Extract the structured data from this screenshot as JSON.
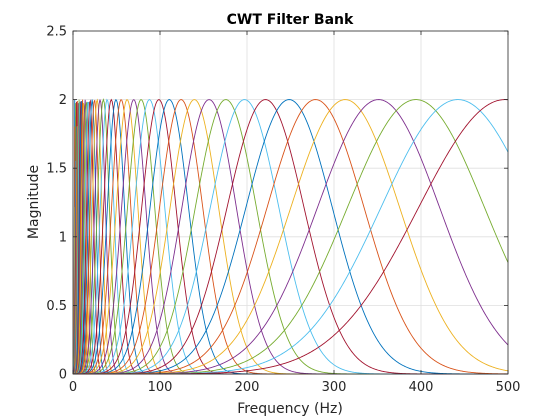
{
  "chart_data": {
    "type": "line",
    "title": "CWT Filter Bank",
    "xlabel": "Frequency (Hz)",
    "ylabel": "Magnitude",
    "xlim": [
      0,
      500
    ],
    "ylim": [
      0,
      2.5
    ],
    "x_ticks": [
      0,
      100,
      200,
      300,
      400,
      500
    ],
    "y_ticks": [
      0,
      0.5,
      1,
      1.5,
      2,
      2.5
    ],
    "x_tick_labels": [
      "0",
      "100",
      "200",
      "300",
      "400",
      "500"
    ],
    "y_tick_labels": [
      "0",
      "0.5",
      "1",
      "1.5",
      "2",
      "2.5"
    ],
    "grid": true,
    "legend": "none",
    "series_description": "Morlet wavelet filter bank: one bell-shaped response per scale, peak magnitude 2",
    "peak_value": 2,
    "peak_frequencies": [
      2.0,
      2.2,
      2.5,
      2.8,
      3.1,
      3.5,
      3.9,
      4.4,
      4.9,
      5.5,
      6.2,
      7.0,
      7.8,
      8.8,
      9.8,
      11.0,
      12.4,
      13.9,
      15.6,
      17.5,
      19.6,
      22.0,
      24.7,
      27.7,
      31.1,
      34.9,
      39.2,
      44.0,
      49.4,
      55.4,
      62.2,
      69.8,
      78.3,
      87.9,
      98.7,
      110.7,
      124.3,
      139.5,
      156.5,
      175.7,
      197.2,
      221.3,
      248.4,
      278.8,
      312.9,
      351.2,
      394.2,
      442.4,
      496.5
    ],
    "colors": [
      "#0072BD",
      "#D95319",
      "#EDB120",
      "#7E2F8E",
      "#77AC30",
      "#4DBEEE",
      "#A2142F"
    ]
  }
}
